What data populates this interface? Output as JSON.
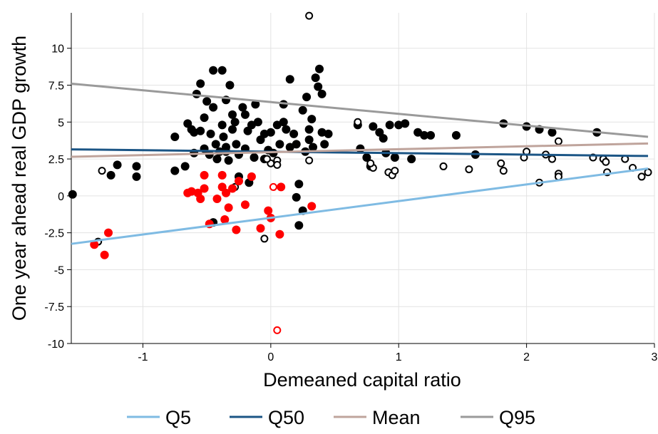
{
  "chart_data": {
    "type": "scatter",
    "x_label": "Demeaned capital ratio",
    "y_label": "One year ahead real GDP growth",
    "xlim": [
      -1.56,
      3.0
    ],
    "ylim": [
      -10,
      12.4
    ],
    "xticks": [
      -1,
      0,
      1,
      2,
      3
    ],
    "yticks": [
      10,
      7.5,
      5,
      2.5,
      0,
      -2.5,
      -5,
      -7.5,
      -10
    ],
    "grid": true,
    "series": [
      {
        "color": "#000000",
        "marker": "filled",
        "x": [
          -1.55,
          -1.2,
          -1.25,
          -1.05,
          -1.05,
          -0.75,
          -0.75,
          -0.67,
          -0.65,
          -0.62,
          -0.6,
          -0.6,
          -0.58,
          -0.55,
          -0.55,
          -0.52,
          -0.52,
          -0.5,
          -0.48,
          -0.47,
          -0.45,
          -0.45,
          -0.43,
          -0.42,
          -0.4,
          -0.38,
          -0.38,
          -0.37,
          -0.35,
          -0.35,
          -0.33,
          -0.32,
          -0.3,
          -0.3,
          -0.28,
          -0.27,
          -0.25,
          -0.25,
          -0.22,
          -0.2,
          -0.2,
          -0.18,
          -0.17,
          -0.15,
          -0.13,
          -0.12,
          -0.1,
          -0.08,
          -0.05,
          -0.05,
          -0.02,
          0.0,
          0.02,
          0.05,
          0.07,
          0.1,
          0.1,
          0.12,
          0.15,
          0.15,
          0.18,
          0.2,
          0.2,
          0.22,
          0.25,
          0.27,
          0.28,
          0.3,
          0.3,
          0.32,
          0.33,
          0.35,
          0.37,
          0.38,
          0.4,
          0.4,
          0.42,
          0.45,
          0.25,
          0.22,
          -0.45,
          -0.35,
          0.68,
          0.7,
          0.75,
          0.78,
          0.8,
          0.85,
          0.88,
          0.9,
          0.93,
          0.97,
          1.0,
          1.05,
          1.1,
          1.15,
          1.2,
          1.25,
          1.45,
          1.6,
          1.82,
          2.0,
          2.1,
          2.2,
          2.55
        ],
        "values": [
          0.1,
          2.1,
          1.4,
          2.0,
          1.3,
          4.0,
          1.7,
          2.0,
          4.9,
          4.5,
          4.3,
          2.9,
          6.9,
          7.6,
          4.4,
          5.3,
          3.2,
          6.4,
          2.8,
          4.2,
          8.5,
          6.0,
          3.5,
          2.5,
          3.0,
          8.5,
          4.8,
          4.0,
          6.5,
          3.0,
          2.4,
          7.5,
          5.5,
          4.5,
          5.0,
          3.5,
          2.8,
          1.3,
          6.0,
          5.5,
          3.2,
          4.4,
          0.9,
          4.8,
          2.6,
          6.2,
          5.0,
          3.8,
          4.2,
          2.5,
          3.1,
          4.3,
          2.9,
          4.8,
          3.5,
          6.2,
          5.0,
          4.5,
          3.3,
          7.9,
          4.2,
          3.5,
          -0.1,
          0.8,
          5.8,
          3.0,
          6.7,
          4.5,
          3.8,
          5.2,
          3.3,
          8.0,
          7.4,
          8.6,
          6.9,
          4.3,
          3.5,
          4.2,
          -1.0,
          -2.0,
          -1.8,
          3.3,
          4.8,
          3.2,
          2.6,
          2.0,
          4.7,
          4.3,
          3.9,
          2.9,
          4.8,
          2.6,
          4.8,
          4.9,
          2.5,
          4.3,
          4.1,
          4.1,
          4.1,
          2.8,
          4.9,
          4.7,
          4.5,
          4.3,
          4.3
        ]
      },
      {
        "color": "#000000",
        "marker": "open",
        "x": [
          0.3,
          -1.32,
          -1.35,
          -0.28,
          -0.27,
          -0.05,
          0.0,
          0.05,
          0.05,
          -0.03,
          0.3,
          0.68,
          0.8,
          0.78,
          0.92,
          0.95,
          0.97,
          1.35,
          1.55,
          1.8,
          1.82,
          1.98,
          2.0,
          2.1,
          2.15,
          2.2,
          2.25,
          2.25,
          2.25,
          2.52,
          2.6,
          2.62,
          2.63,
          2.77,
          2.83,
          2.9,
          2.95
        ],
        "values": [
          12.2,
          1.7,
          -3.1,
          0.6,
          -2.3,
          -2.9,
          2.2,
          2.4,
          2.1,
          2.5,
          2.4,
          5.0,
          1.9,
          2.2,
          1.6,
          1.4,
          1.7,
          2.0,
          1.8,
          2.2,
          1.7,
          2.6,
          3.0,
          0.9,
          2.8,
          2.5,
          3.7,
          1.5,
          1.3,
          2.6,
          2.5,
          2.3,
          1.6,
          2.5,
          1.9,
          1.3,
          1.6
        ]
      },
      {
        "color": "#ff0000",
        "marker": "filled",
        "x": [
          -1.38,
          -1.27,
          -1.3,
          -0.65,
          -0.62,
          -0.57,
          -0.55,
          -0.52,
          -0.52,
          -0.48,
          -0.42,
          -0.38,
          -0.38,
          -0.36,
          -0.35,
          -0.33,
          -0.3,
          -0.27,
          -0.25,
          -0.2,
          -0.15,
          -0.08,
          -0.02,
          0.0,
          0.08,
          0.07,
          0.32
        ],
        "values": [
          -3.3,
          -2.5,
          -4.0,
          0.2,
          0.3,
          0.2,
          -0.2,
          0.5,
          1.4,
          -1.9,
          -0.2,
          1.4,
          0.6,
          -1.6,
          0.2,
          -0.8,
          0.5,
          -2.3,
          1.0,
          -0.6,
          1.3,
          -2.2,
          -1.0,
          -1.5,
          0.6,
          -2.6,
          -0.7
        ]
      },
      {
        "color": "#ff0000",
        "marker": "open",
        "x": [
          0.02,
          0.05
        ],
        "values": [
          0.6,
          -9.1
        ]
      }
    ],
    "lines": [
      {
        "name": "Q5",
        "color": "#7fbbe3",
        "x": [
          -1.56,
          2.95
        ],
        "values": [
          -3.25,
          1.85
        ]
      },
      {
        "name": "Q50",
        "color": "#1b5585",
        "x": [
          -1.56,
          2.95
        ],
        "values": [
          3.15,
          2.7
        ]
      },
      {
        "name": "Mean",
        "color": "#bfa49c",
        "x": [
          -1.56,
          2.95
        ],
        "values": [
          2.65,
          3.55
        ]
      },
      {
        "name": "Q95",
        "color": "#9a9a9a",
        "x": [
          -1.56,
          2.95
        ],
        "values": [
          7.6,
          4.0
        ]
      }
    ]
  }
}
